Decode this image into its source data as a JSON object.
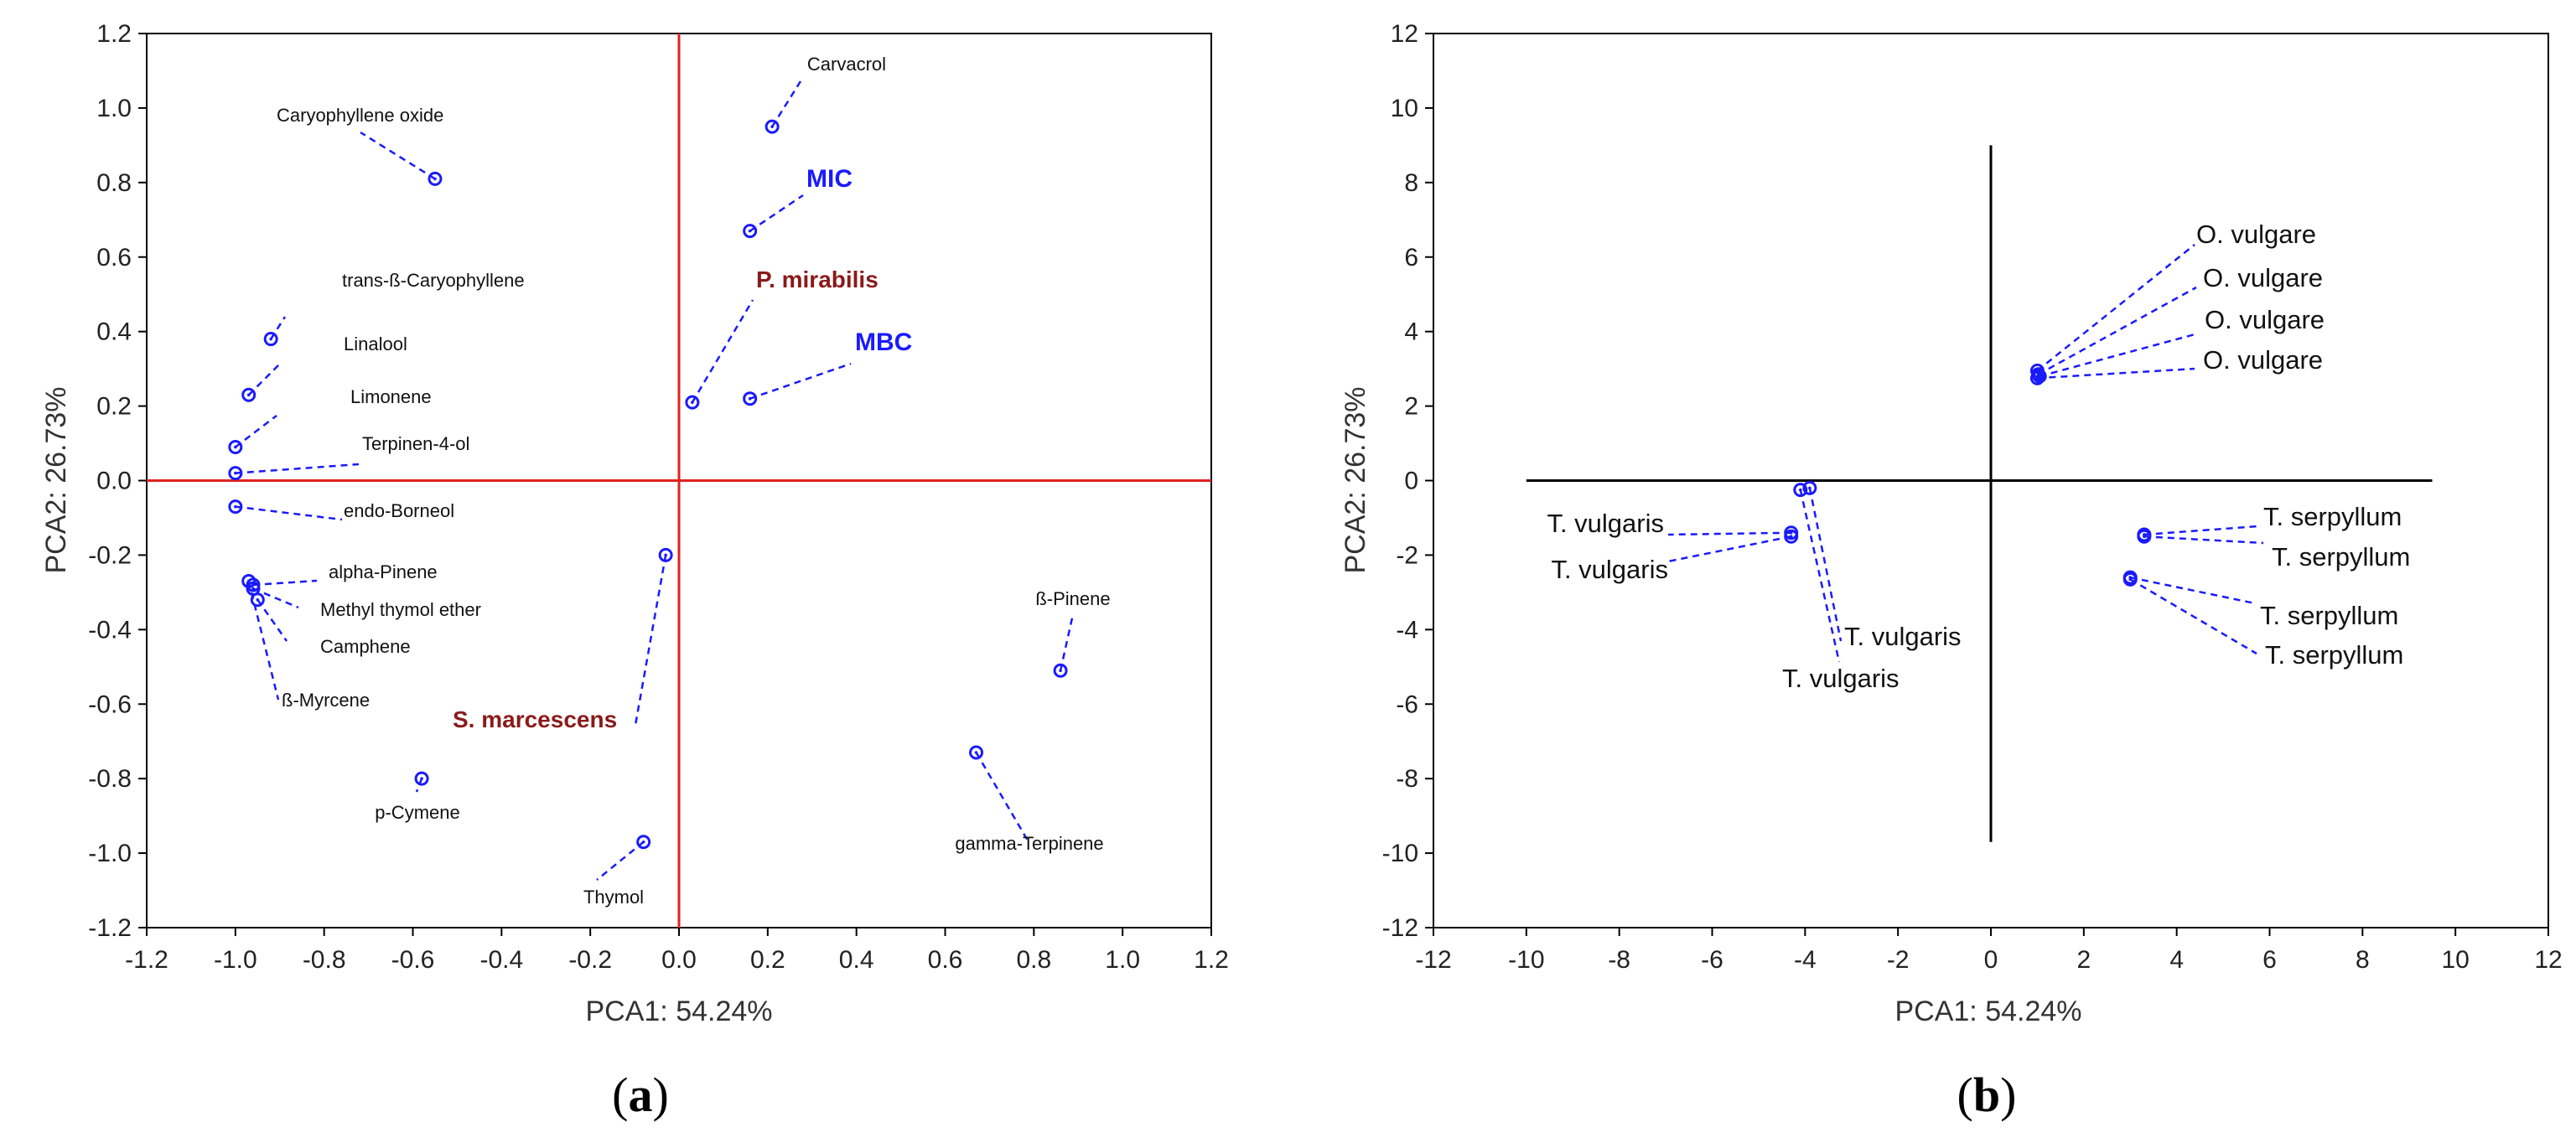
{
  "chart_data": [
    {
      "type": "scatter",
      "panel": "(a)",
      "xlabel": "PCA1: 54.24%",
      "ylabel": "PCA2: 26.73%",
      "xlim": [
        -1.2,
        1.2
      ],
      "ylim": [
        -1.2,
        1.2
      ],
      "xticks": [
        "-1.2",
        "-1.0",
        "-0.8",
        "-0.6",
        "-0.4",
        "-0.2",
        "0.0",
        "0.2",
        "0.4",
        "0.6",
        "0.8",
        "1.0",
        "1.2"
      ],
      "yticks": [
        "1.2",
        "1.0",
        "0.8",
        "0.6",
        "0.4",
        "0.2",
        "0.0",
        "-0.2",
        "-0.4",
        "-0.6",
        "-0.8",
        "-1.0",
        "-1.2"
      ],
      "axis_color": "#e02020",
      "marker_color": "#1a1aff",
      "points": [
        {
          "label": "Caryophyllene oxide",
          "x": -0.55,
          "y": 0.81,
          "style": "compound"
        },
        {
          "label": "trans-ß-Caryophyllene",
          "x": -0.92,
          "y": 0.38,
          "style": "compound"
        },
        {
          "label": "Linalool",
          "x": -0.97,
          "y": 0.23,
          "style": "compound"
        },
        {
          "label": "Limonene",
          "x": -1.0,
          "y": 0.09,
          "style": "compound"
        },
        {
          "label": "Terpinen-4-ol",
          "x": -1.0,
          "y": 0.02,
          "style": "compound"
        },
        {
          "label": "endo-Borneol",
          "x": -1.0,
          "y": -0.07,
          "style": "compound"
        },
        {
          "label": "alpha-Pinene",
          "x": -0.96,
          "y": -0.28,
          "style": "compound"
        },
        {
          "label": "Methyl thymol ether",
          "x": -0.96,
          "y": -0.29,
          "style": "compound"
        },
        {
          "label": "Camphene",
          "x": -0.95,
          "y": -0.32,
          "style": "compound"
        },
        {
          "label": "ß-Myrcene",
          "x": -0.97,
          "y": -0.27,
          "style": "compound"
        },
        {
          "label": "p-Cymene",
          "x": -0.58,
          "y": -0.8,
          "style": "compound"
        },
        {
          "label": "Thymol",
          "x": -0.08,
          "y": -0.97,
          "style": "compound"
        },
        {
          "label": "Carvacrol",
          "x": 0.21,
          "y": 0.95,
          "style": "compound"
        },
        {
          "label": "MIC",
          "x": 0.16,
          "y": 0.67,
          "style": "blue-bold"
        },
        {
          "label": "P. mirabilis",
          "x": 0.03,
          "y": 0.21,
          "style": "red-bold"
        },
        {
          "label": "MBC",
          "x": 0.16,
          "y": 0.22,
          "style": "blue-bold"
        },
        {
          "label": "S. marcescens",
          "x": -0.03,
          "y": -0.2,
          "style": "red-bold"
        },
        {
          "label": "ß-Pinene",
          "x": 0.86,
          "y": -0.51,
          "style": "compound"
        },
        {
          "label": "gamma-Terpinene",
          "x": 0.67,
          "y": -0.73,
          "style": "compound"
        }
      ]
    },
    {
      "type": "scatter",
      "panel": "(b)",
      "xlabel": "PCA1: 54.24%",
      "ylabel": "PCA2: 26.73%",
      "xlim": [
        -12,
        12
      ],
      "ylim": [
        -12,
        12
      ],
      "xticks": [
        "-12",
        "-10",
        "-8",
        "-6",
        "-4",
        "-2",
        "0",
        "2",
        "4",
        "6",
        "8",
        "10",
        "12"
      ],
      "yticks": [
        "12",
        "10",
        "8",
        "6",
        "4",
        "2",
        "0",
        "-2",
        "-4",
        "-6",
        "-8",
        "-10",
        "-12"
      ],
      "axis_color": "#000000",
      "marker_color": "#1a1aff",
      "points": [
        {
          "label": "O. vulgare",
          "x": 1.0,
          "y": 2.95
        },
        {
          "label": "O. vulgare",
          "x": 1.02,
          "y": 2.85
        },
        {
          "label": "O. vulgare",
          "x": 1.05,
          "y": 2.8
        },
        {
          "label": "O. vulgare",
          "x": 1.0,
          "y": 2.75
        },
        {
          "label": "T. vulgaris",
          "x": -4.3,
          "y": -1.4
        },
        {
          "label": "T. vulgaris",
          "x": -4.3,
          "y": -1.5
        },
        {
          "label": "T. vulgaris",
          "x": -3.9,
          "y": -0.2
        },
        {
          "label": "T. vulgaris",
          "x": -4.1,
          "y": -0.25
        },
        {
          "label": "T. serpyllum",
          "x": 3.3,
          "y": -1.45
        },
        {
          "label": "T. serpyllum",
          "x": 3.3,
          "y": -1.5
        },
        {
          "label": "T. serpyllum",
          "x": 3.0,
          "y": -2.6
        },
        {
          "label": "T. serpyllum",
          "x": 3.0,
          "y": -2.65
        }
      ]
    }
  ]
}
